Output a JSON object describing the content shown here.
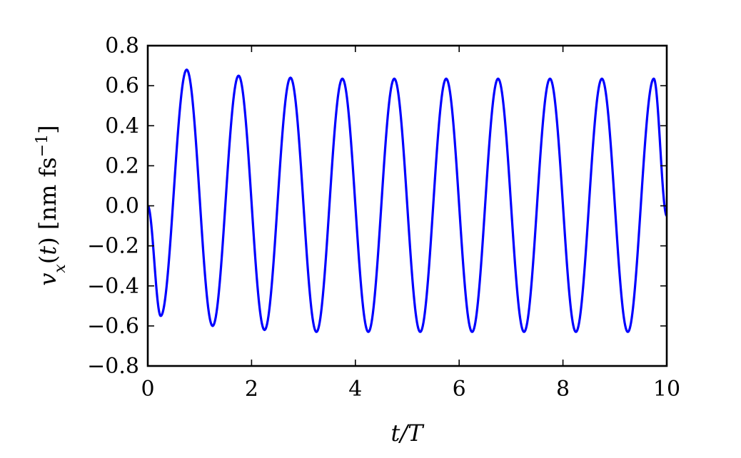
{
  "chart_data": {
    "type": "line",
    "xlabel": "t/T",
    "ylabel": "v_x(t) [nm fs^-1]",
    "xlim": [
      0,
      10
    ],
    "ylim": [
      -0.8,
      0.8
    ],
    "xticks": [
      0,
      2,
      4,
      6,
      8,
      10
    ],
    "xtick_labels": [
      "0",
      "2",
      "4",
      "6",
      "8",
      "10"
    ],
    "yticks": [
      -0.8,
      -0.6,
      -0.4,
      -0.2,
      0.0,
      0.2,
      0.4,
      0.6,
      0.8
    ],
    "ytick_labels": [
      "−0.8",
      "−0.6",
      "−0.4",
      "−0.2",
      "0.0",
      "0.2",
      "0.4",
      "0.6",
      "0.8"
    ],
    "grid": false,
    "series": [
      {
        "color": "#0000ff",
        "x": [
          0,
          0.25,
          0.75,
          1.25,
          1.75,
          2.25,
          2.75,
          3.25,
          3.75,
          4.25,
          4.75,
          5.25,
          5.75,
          6.25,
          6.75,
          7.25,
          7.75,
          8.25,
          8.75,
          9.25,
          9.75,
          10
        ],
        "y": [
          0.0,
          -0.55,
          0.68,
          -0.6,
          0.65,
          -0.62,
          0.64,
          -0.63,
          0.635,
          -0.63,
          0.635,
          -0.63,
          0.635,
          -0.63,
          0.635,
          -0.63,
          0.635,
          -0.63,
          0.635,
          -0.63,
          0.635,
          -0.05
        ]
      }
    ]
  }
}
